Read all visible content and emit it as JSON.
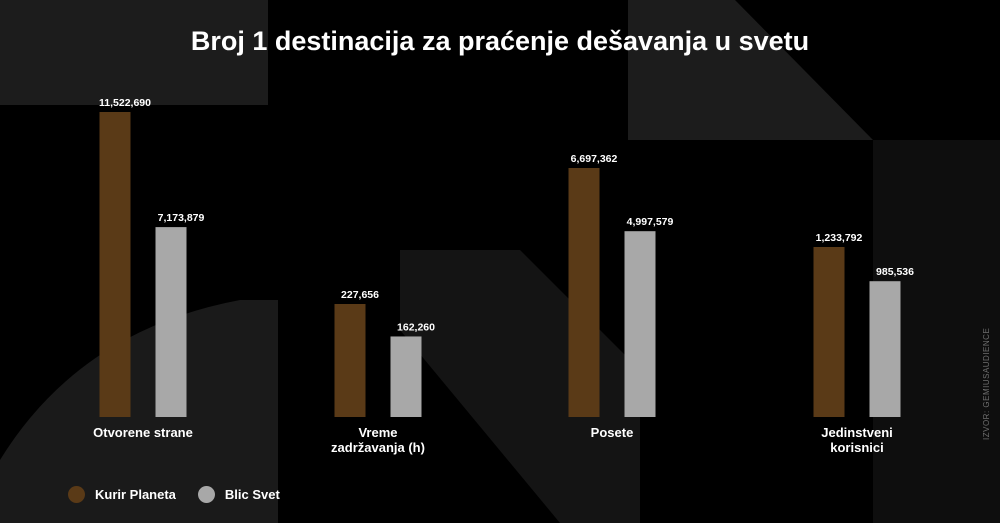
{
  "title": "Broj 1 destinacija za praćenje dešavanja u svetu",
  "source": "IZVOR: GEMIUSAUDIENCE",
  "colors": {
    "background": "#000000",
    "shape": "#1c1c1c",
    "kurir": "#5a3a17",
    "blic": "#a8a8a8"
  },
  "chart_data": {
    "type": "bar",
    "categories": [
      "Otvorene strane",
      "Vreme zadržavanja (h)",
      "Posete",
      "Jedinstveni korisnici"
    ],
    "category_label_lines": [
      [
        "Otvorene strane"
      ],
      [
        "Vreme",
        "zadržavanja (h)"
      ],
      [
        "Posete"
      ],
      [
        "Jedinstveni",
        "korisnici"
      ]
    ],
    "series": [
      {
        "name": "Kurir Planeta",
        "color": "#5a3a17",
        "values": [
          11522690,
          227656,
          6697362,
          1233792
        ],
        "value_labels": [
          "11,522,690",
          "227,656",
          "6,697,362",
          "1,233,792"
        ]
      },
      {
        "name": "Blic Svet",
        "color": "#a8a8a8",
        "values": [
          7173879,
          162260,
          4997579,
          985536
        ],
        "value_labels": [
          "7,173,879",
          "162,260",
          "4,997,579",
          "985,536"
        ]
      }
    ],
    "legend_position": "bottom-left",
    "grid": false
  }
}
